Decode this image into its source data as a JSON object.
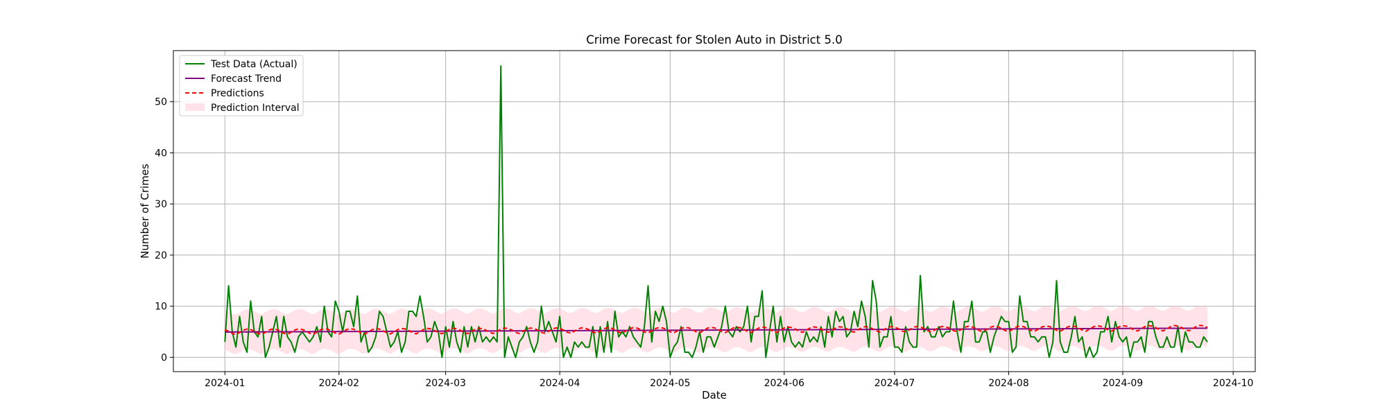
{
  "chart_data": {
    "type": "line",
    "title": "Crime Forecast for Stolen Auto in District 5.0",
    "xlabel": "Date",
    "ylabel": "Number of Crimes",
    "xlim": [
      "2023-12-18",
      "2024-10-07"
    ],
    "ylim": [
      -2.8,
      60
    ],
    "x_ticks": [
      "2024-01",
      "2024-02",
      "2024-03",
      "2024-04",
      "2024-05",
      "2024-06",
      "2024-07",
      "2024-08",
      "2024-09",
      "2024-10"
    ],
    "x_tick_dates": [
      "2024-01-01",
      "2024-02-01",
      "2024-03-01",
      "2024-04-01",
      "2024-05-01",
      "2024-06-01",
      "2024-07-01",
      "2024-08-01",
      "2024-09-01",
      "2024-10-01"
    ],
    "y_ticks": [
      0,
      10,
      20,
      30,
      40,
      50
    ],
    "grid": true,
    "legend_position": "upper-left",
    "start_date": "2024-01-01",
    "end_date": "2024-09-21",
    "actual": {
      "name": "Test Data (Actual)",
      "color": "#008000",
      "values": [
        3,
        14,
        5,
        2,
        8,
        3,
        1,
        11,
        5,
        4,
        8,
        0,
        2,
        5,
        8,
        2,
        8,
        4,
        3,
        1,
        4,
        5,
        4,
        3,
        4,
        6,
        3,
        10,
        5,
        4,
        11,
        9,
        5,
        9,
        9,
        6,
        12,
        3,
        5,
        1,
        2,
        4,
        9,
        8,
        5,
        2,
        3,
        5,
        1,
        3,
        9,
        9,
        8,
        12,
        8,
        3,
        4,
        7,
        5,
        0,
        6,
        2,
        7,
        3,
        1,
        6,
        2,
        6,
        3,
        6,
        3,
        4,
        3,
        4,
        3,
        57,
        0,
        4,
        2,
        0,
        3,
        4,
        6,
        3,
        1,
        3,
        10,
        5,
        7,
        5,
        3,
        8,
        0,
        2,
        0,
        3,
        2,
        3,
        2,
        2,
        6,
        0,
        6,
        1,
        7,
        1,
        9,
        4,
        5,
        4,
        6,
        4,
        3,
        2,
        6,
        14,
        3,
        9,
        7,
        10,
        7,
        0,
        2,
        3,
        6,
        1,
        1,
        0,
        2,
        5,
        1,
        4,
        4,
        2,
        4,
        6,
        10,
        5,
        4,
        6,
        5,
        6,
        10,
        3,
        8,
        8,
        13,
        0,
        5,
        10,
        3,
        8,
        3,
        6,
        3,
        2,
        3,
        2,
        5,
        3,
        4,
        3,
        6,
        2,
        8,
        4,
        9,
        7,
        8,
        4,
        5,
        9,
        6,
        11,
        8,
        2,
        15,
        11,
        2,
        4,
        4,
        8,
        2,
        2,
        1,
        6,
        3,
        2,
        2,
        16,
        5,
        6,
        4,
        4,
        6,
        4,
        5,
        5,
        11,
        5,
        1,
        7,
        7,
        11,
        3,
        3,
        5,
        5,
        1,
        4,
        6,
        8,
        7,
        7,
        1,
        2,
        12,
        7,
        7,
        4,
        4,
        3,
        4,
        4,
        0,
        3,
        15,
        3,
        1,
        1,
        4,
        8,
        3,
        4,
        0,
        2,
        0,
        1,
        5,
        5,
        8,
        3,
        7,
        4,
        3,
        4,
        0,
        3,
        3,
        4,
        1,
        7,
        7,
        4,
        2,
        2,
        4,
        2,
        2,
        6,
        1,
        5,
        3,
        3,
        2,
        2,
        4,
        3
      ]
    },
    "trend": {
      "name": "Forecast Trend",
      "color": "#800080",
      "start": 4.95,
      "end": 5.7
    },
    "predictions": {
      "name": "Predictions",
      "color": "#ff0000",
      "weekly_pattern": [
        0.45,
        0.15,
        -0.3,
        -0.5,
        -0.1,
        0.35,
        0.55
      ]
    },
    "interval": {
      "name": "Prediction Interval",
      "color": "#ffc0cb",
      "half_width": 3.9
    }
  }
}
